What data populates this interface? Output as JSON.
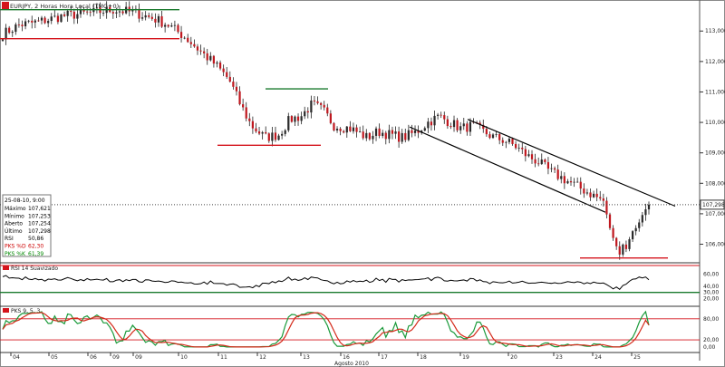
{
  "chart_data": {
    "type": "candlestick",
    "title": "EURJPY, 2 Horas Hora Local (TMG+0)",
    "price_axis": {
      "ticks": [
        "113,000",
        "112,000",
        "111,000",
        "110,000",
        "109,000",
        "108,000",
        "107,000",
        "106,000"
      ],
      "tick_values": [
        113.0,
        112.0,
        111.0,
        110.0,
        109.0,
        108.0,
        107.0,
        106.0
      ],
      "range": [
        105.45,
        113.9
      ],
      "last_price_label": "107,298",
      "last_price": 107.298
    },
    "time_axis": {
      "day_labels": [
        "04",
        "05",
        "06",
        "09",
        "09",
        "10",
        "11",
        "12",
        "13",
        "16",
        "17",
        "18",
        "19",
        "20",
        "23",
        "24",
        "25"
      ],
      "month_label": "Agosto 2010"
    },
    "info_box": {
      "date": "25-08-10, 9:00",
      "rows": [
        {
          "label": "Máximo",
          "value": "107,621",
          "color": "#000000"
        },
        {
          "label": "Mínimo",
          "value": "107,253",
          "color": "#000000"
        },
        {
          "label": "Aberto",
          "value": "107,254",
          "color": "#000000"
        },
        {
          "label": "Último",
          "value": "107,298",
          "color": "#000000"
        },
        {
          "label": "RSI",
          "value": "50,86",
          "color": "#000000"
        },
        {
          "label": "PKS %D",
          "value": "62,30",
          "color": "#cc0000"
        },
        {
          "label": "PKS %K",
          "value": "61,39",
          "color": "#008800"
        }
      ]
    },
    "rsi_panel": {
      "title": "RSI 14 Suavizado",
      "ticks": [
        "60,00",
        "40,00",
        "30,00",
        "20,00"
      ],
      "tick_values": [
        60,
        40,
        30,
        20
      ],
      "level_line": 30,
      "range": [
        10,
        70
      ]
    },
    "stoch_panel": {
      "title": "PKS 9, 5, 3",
      "ticks": [
        "80,00",
        "20,00",
        "0,00"
      ],
      "tick_values": [
        80,
        20,
        0
      ],
      "levels": [
        80,
        20
      ],
      "range": [
        -8,
        100
      ]
    },
    "colors": {
      "bull": "#2a2a2a",
      "bear": "#c0181f",
      "wick": "#222222",
      "support": "#d4141c",
      "resistance": "#1a7a2e",
      "channel": "#000000",
      "rsi": "#000000",
      "stoch_k": "#1a9a3a",
      "stoch_d": "#d42a1a",
      "stoch_level": "#d4141c"
    },
    "candle_count": 200
  }
}
